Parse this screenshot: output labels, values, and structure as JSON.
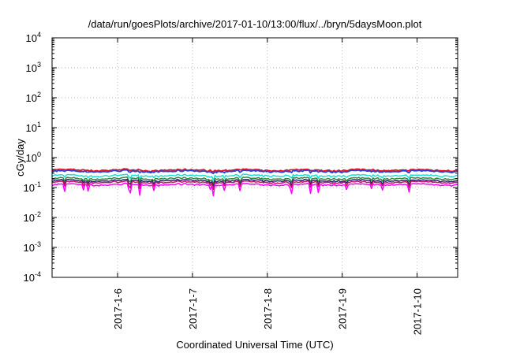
{
  "chart_data": {
    "type": "line",
    "title": "/data/run/goesPlots/archive/2017-01-10/13:00/flux/../bryn/5daysMoon.plot",
    "xlabel": "Coordinated Universal Time (UTC)",
    "ylabel": "cGy/day",
    "y_scale": "log",
    "ylim": [
      0.0001,
      10000
    ],
    "y_ticks": [
      {
        "value": 0.0001,
        "base": "10",
        "exp": "-4"
      },
      {
        "value": 0.001,
        "base": "10",
        "exp": "-3"
      },
      {
        "value": 0.01,
        "base": "10",
        "exp": "-2"
      },
      {
        "value": 0.1,
        "base": "10",
        "exp": "-1"
      },
      {
        "value": 1,
        "base": "10",
        "exp": "0"
      },
      {
        "value": 10,
        "base": "10",
        "exp": "1"
      },
      {
        "value": 100,
        "base": "10",
        "exp": "2"
      },
      {
        "value": 1000,
        "base": "10",
        "exp": "3"
      },
      {
        "value": 10000,
        "base": "10",
        "exp": "4"
      }
    ],
    "xlim": [
      "2017-01-05 03:00",
      "2017-01-10 13:00"
    ],
    "x_ticks": [
      {
        "value": "2017-01-06",
        "label": "2017-1-6"
      },
      {
        "value": "2017-01-07",
        "label": "2017-1-7"
      },
      {
        "value": "2017-01-08",
        "label": "2017-1-8"
      },
      {
        "value": "2017-01-09",
        "label": "2017-1-9"
      },
      {
        "value": "2017-01-10",
        "label": "2017-1-10"
      }
    ],
    "grid": true,
    "legend": "none",
    "series": [
      {
        "color": "#e8141c",
        "level": 0.38,
        "dips": 0.0
      },
      {
        "color": "#2b3fd6",
        "level": 0.35,
        "dips": 0.2
      },
      {
        "color": "#16e0d2",
        "level": 0.25,
        "dips": 0.4
      },
      {
        "color": "#2f8a3a",
        "level": 0.2,
        "dips": 0.5
      },
      {
        "color": "#2a1a6e",
        "level": 0.17,
        "dips": 0.6
      },
      {
        "color": "#c5195e",
        "level": 0.15,
        "dips": 0.7
      },
      {
        "color": "#ff00ff",
        "level": 0.125,
        "dips": 1.0
      }
    ]
  }
}
